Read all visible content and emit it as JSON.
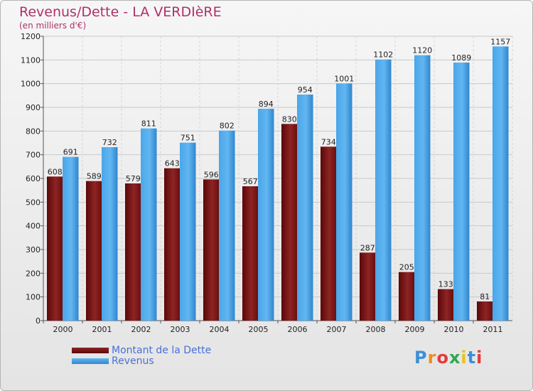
{
  "title": "Revenus/Dette - LA VERDIèRE",
  "subtitle": "(en milliers d'€)",
  "logo_text": "Proxiti",
  "colors": {
    "dette": "#7a1010",
    "revenus": "#3d9be6"
  },
  "chart_data": {
    "type": "bar",
    "title": "Revenus/Dette - LA VERDIèRE",
    "ylabel": "(en milliers d'€)",
    "xlabel": "",
    "categories": [
      "2000",
      "2001",
      "2002",
      "2003",
      "2004",
      "2005",
      "2006",
      "2007",
      "2008",
      "2009",
      "2010",
      "2011"
    ],
    "series": [
      {
        "name": "Montant de la Dette",
        "values": [
          608,
          589,
          579,
          643,
          596,
          567,
          830,
          734,
          287,
          205,
          133,
          81
        ]
      },
      {
        "name": "Revenus",
        "values": [
          691,
          732,
          811,
          751,
          802,
          894,
          954,
          1001,
          1102,
          1120,
          1089,
          1157
        ]
      }
    ],
    "ylim": [
      0,
      1200
    ],
    "yticks": [
      0,
      100,
      200,
      300,
      400,
      500,
      600,
      700,
      800,
      900,
      1000,
      1100,
      1200
    ],
    "grid": true,
    "legend": "bottom-left"
  }
}
